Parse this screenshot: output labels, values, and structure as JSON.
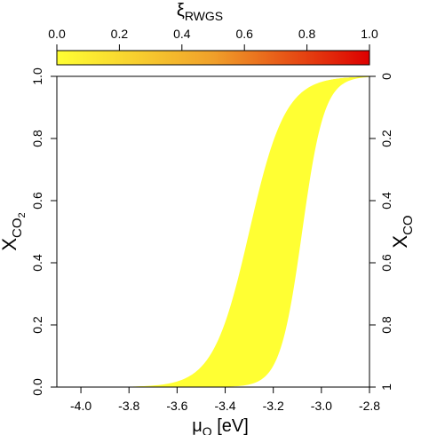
{
  "chart_data": {
    "type": "area",
    "colorbar": {
      "label_main": "ξ",
      "label_sub": "RWGS",
      "range": [
        0,
        1
      ],
      "ticks": [
        "0.0",
        "0.2",
        "0.4",
        "0.6",
        "0.8",
        "1.0"
      ],
      "color_start": "#ffff33",
      "color_mid": "#f0a02a",
      "color_end": "#dd0000"
    },
    "x_axis": {
      "label_main": "μ",
      "label_sub": "O",
      "label_unit": " [eV]",
      "range": [
        -4.1,
        -2.8
      ],
      "ticks": [
        "-4.0",
        "-3.8",
        "-3.6",
        "-3.4",
        "-3.2",
        "-3.0",
        "-2.8"
      ]
    },
    "y_axis_left": {
      "label_main": "X",
      "label_sub": "CO",
      "label_subsub": "2",
      "range": [
        0,
        1
      ],
      "ticks": [
        "0.0",
        "0.2",
        "0.4",
        "0.6",
        "0.8",
        "1.0"
      ]
    },
    "y_axis_right": {
      "label_main": "X",
      "label_sub": "CO",
      "range": [
        1,
        0
      ],
      "ticks": [
        "1",
        "0.8",
        "0.6",
        "0.4",
        "0.2",
        "0"
      ]
    },
    "curves": {
      "xi_levels": 40,
      "xi0_midpoint_mu": -3.3,
      "xi0_scale": 0.075,
      "xi1_midpoint_mu": -3.08,
      "xi1_scale": 0.046
    }
  }
}
